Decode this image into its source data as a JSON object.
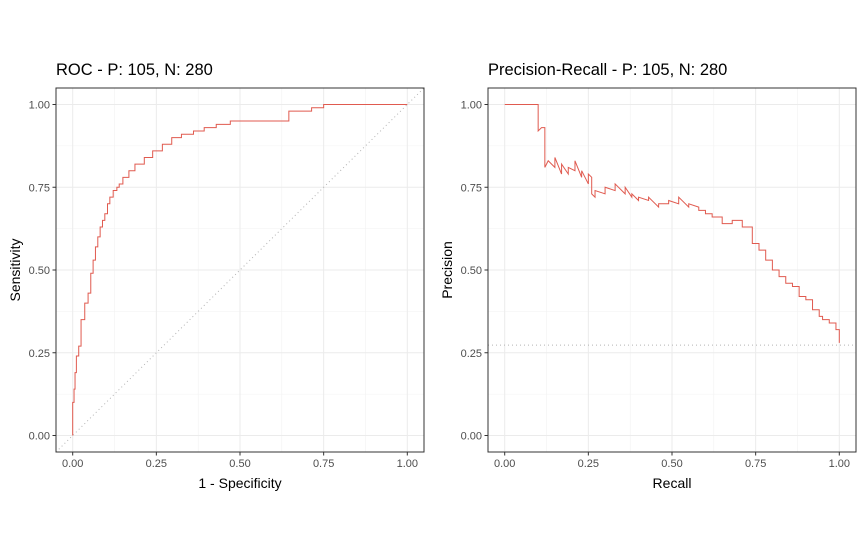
{
  "chart_data": [
    {
      "type": "line",
      "title": "ROC - P: 105, N: 280",
      "xlabel": "1 - Specificity",
      "ylabel": "Sensitivity",
      "xlim": [
        0,
        1
      ],
      "ylim": [
        0,
        1
      ],
      "xticks": [
        "0.00",
        "0.25",
        "0.50",
        "0.75",
        "1.00"
      ],
      "yticks": [
        "0.00",
        "0.25",
        "0.50",
        "0.75",
        "1.00"
      ],
      "grid": true,
      "line_color": "#e05a4f",
      "reference_line": {
        "style": "dotted",
        "color": "#b3b3b3",
        "from": [
          0,
          0
        ],
        "to": [
          1,
          1
        ]
      },
      "series": [
        {
          "x": [
            0.0,
            0.0,
            0.004,
            0.004,
            0.007,
            0.007,
            0.011,
            0.011,
            0.018,
            0.018,
            0.025,
            0.025,
            0.036,
            0.036,
            0.046,
            0.046,
            0.054,
            0.054,
            0.061,
            0.061,
            0.068,
            0.068,
            0.075,
            0.075,
            0.082,
            0.082,
            0.089,
            0.089,
            0.096,
            0.096,
            0.104,
            0.104,
            0.111,
            0.111,
            0.121,
            0.121,
            0.132,
            0.132,
            0.139,
            0.139,
            0.15,
            0.15,
            0.168,
            0.168,
            0.186,
            0.186,
            0.214,
            0.214,
            0.239,
            0.239,
            0.268,
            0.268,
            0.296,
            0.296,
            0.325,
            0.325,
            0.361,
            0.361,
            0.393,
            0.393,
            0.429,
            0.429,
            0.471,
            0.471,
            0.5,
            0.5,
            0.646,
            0.646,
            0.714,
            0.714,
            0.75,
            0.75,
            1.0
          ],
          "y": [
            0.0,
            0.1,
            0.1,
            0.14,
            0.14,
            0.19,
            0.19,
            0.24,
            0.24,
            0.27,
            0.27,
            0.35,
            0.35,
            0.4,
            0.4,
            0.43,
            0.43,
            0.49,
            0.49,
            0.53,
            0.53,
            0.57,
            0.57,
            0.6,
            0.6,
            0.63,
            0.63,
            0.65,
            0.65,
            0.67,
            0.67,
            0.7,
            0.7,
            0.72,
            0.72,
            0.74,
            0.74,
            0.75,
            0.75,
            0.76,
            0.76,
            0.78,
            0.78,
            0.8,
            0.8,
            0.82,
            0.82,
            0.84,
            0.84,
            0.86,
            0.86,
            0.88,
            0.88,
            0.9,
            0.9,
            0.91,
            0.91,
            0.92,
            0.92,
            0.93,
            0.93,
            0.94,
            0.94,
            0.95,
            0.95,
            0.95,
            0.95,
            0.98,
            0.98,
            0.99,
            0.99,
            1.0,
            1.0
          ]
        }
      ]
    },
    {
      "type": "line",
      "title": "Precision-Recall - P: 105, N: 280",
      "xlabel": "Recall",
      "ylabel": "Precision",
      "xlim": [
        0,
        1
      ],
      "ylim": [
        0,
        1
      ],
      "xticks": [
        "0.00",
        "0.25",
        "0.50",
        "0.75",
        "1.00"
      ],
      "yticks": [
        "0.00",
        "0.25",
        "0.50",
        "0.75",
        "1.00"
      ],
      "grid": true,
      "line_color": "#e05a4f",
      "reference_line": {
        "style": "dotted",
        "color": "#b3b3b3",
        "y": 0.273
      },
      "series": [
        {
          "x": [
            0.0,
            0.1,
            0.1,
            0.11,
            0.11,
            0.12,
            0.12,
            0.13,
            0.15,
            0.15,
            0.17,
            0.17,
            0.19,
            0.19,
            0.21,
            0.21,
            0.23,
            0.23,
            0.25,
            0.25,
            0.26,
            0.26,
            0.27,
            0.27,
            0.3,
            0.3,
            0.33,
            0.33,
            0.36,
            0.36,
            0.38,
            0.38,
            0.4,
            0.4,
            0.43,
            0.43,
            0.46,
            0.46,
            0.49,
            0.49,
            0.52,
            0.52,
            0.55,
            0.55,
            0.58,
            0.58,
            0.6,
            0.6,
            0.62,
            0.62,
            0.65,
            0.65,
            0.68,
            0.68,
            0.71,
            0.71,
            0.74,
            0.74,
            0.76,
            0.76,
            0.78,
            0.78,
            0.8,
            0.8,
            0.82,
            0.82,
            0.84,
            0.84,
            0.86,
            0.86,
            0.88,
            0.88,
            0.9,
            0.9,
            0.92,
            0.92,
            0.94,
            0.94,
            0.95,
            0.95,
            0.97,
            0.97,
            0.99,
            0.99,
            1.0,
            1.0
          ],
          "y": [
            1.0,
            1.0,
            0.92,
            0.93,
            0.93,
            0.93,
            0.81,
            0.83,
            0.81,
            0.84,
            0.79,
            0.82,
            0.79,
            0.81,
            0.8,
            0.83,
            0.78,
            0.8,
            0.76,
            0.79,
            0.78,
            0.73,
            0.72,
            0.74,
            0.73,
            0.75,
            0.74,
            0.76,
            0.73,
            0.75,
            0.72,
            0.73,
            0.71,
            0.72,
            0.71,
            0.72,
            0.69,
            0.7,
            0.7,
            0.71,
            0.7,
            0.72,
            0.69,
            0.7,
            0.69,
            0.68,
            0.68,
            0.67,
            0.67,
            0.66,
            0.66,
            0.64,
            0.64,
            0.65,
            0.65,
            0.63,
            0.63,
            0.58,
            0.58,
            0.56,
            0.56,
            0.53,
            0.53,
            0.5,
            0.5,
            0.48,
            0.48,
            0.46,
            0.46,
            0.45,
            0.45,
            0.42,
            0.42,
            0.41,
            0.41,
            0.38,
            0.38,
            0.36,
            0.36,
            0.35,
            0.35,
            0.34,
            0.34,
            0.32,
            0.32,
            0.28
          ]
        }
      ]
    }
  ]
}
